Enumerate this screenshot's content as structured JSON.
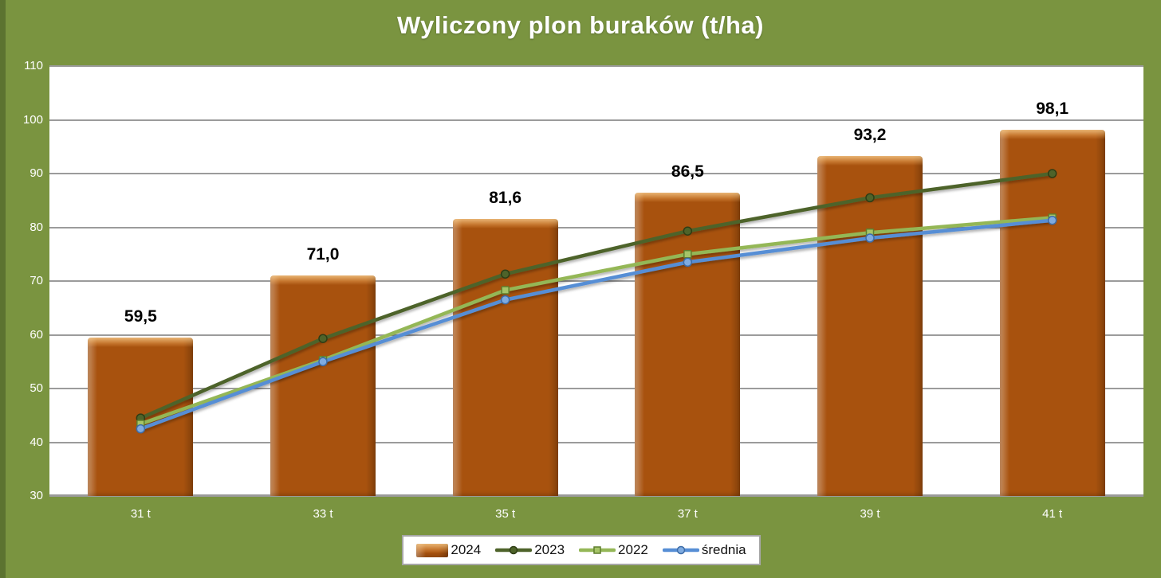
{
  "chart_data": {
    "type": "bar",
    "title": "Wyliczony plon buraków (t/ha)",
    "categories": [
      "31 t",
      "33 t",
      "35 t",
      "37 t",
      "39 t",
      "41 t"
    ],
    "y_axis": {
      "min": 30,
      "max": 110,
      "step": 10,
      "tick_labels": [
        "110",
        "100",
        "90",
        "80",
        "70",
        "60",
        "50",
        "40",
        "30"
      ]
    },
    "grid": true,
    "bar_series": {
      "name": "2024",
      "color": "#A8520E",
      "values": [
        59.5,
        71.0,
        81.6,
        86.5,
        93.2,
        98.1
      ],
      "data_labels": [
        "59,5",
        "71,0",
        "81,6",
        "86,5",
        "93,2",
        "98,1"
      ]
    },
    "line_series": [
      {
        "name": "2023",
        "color": "#4E632A",
        "marker": "circle",
        "marker_fill": "#4E632A",
        "marker_stroke": "#2E3D15",
        "values": [
          44.5,
          59.3,
          71.3,
          79.3,
          85.5,
          90.0
        ]
      },
      {
        "name": "2022",
        "color": "#94B757",
        "marker": "square",
        "marker_fill": "#A6C468",
        "marker_stroke": "#5F7F2E",
        "values": [
          43.4,
          55.3,
          68.3,
          75.0,
          79.0,
          81.8
        ]
      },
      {
        "name": "średnia",
        "color": "#568ED5",
        "marker": "circle",
        "marker_fill": "#7FABE0",
        "marker_stroke": "#3C6CA8",
        "values": [
          42.5,
          55.0,
          66.5,
          73.5,
          78.0,
          81.3
        ]
      }
    ],
    "legend": {
      "position": "bottom-center",
      "entries": [
        "2024",
        "2023",
        "2022",
        "średnia"
      ]
    },
    "colors": {
      "background": "#7A9440",
      "left_edge": "#5C7330",
      "plot_background": "#FFFFFF",
      "gridline": "#9B9B9B",
      "title_text": "#FFFFFF",
      "axis_text": "#FFFFFF",
      "bar_label_text": "#000000"
    }
  }
}
